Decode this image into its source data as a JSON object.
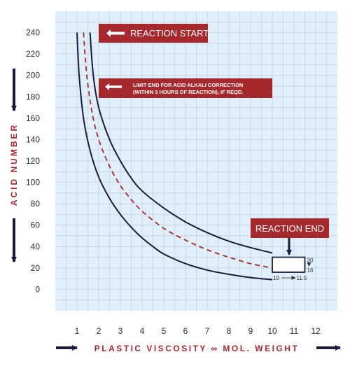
{
  "chart_data": {
    "type": "line",
    "title": "",
    "xlabel": "PLASTIC VISCOSITY ∞ MOL. WEIGHT",
    "ylabel": "ACID NUMBER",
    "xlim": [
      0,
      13
    ],
    "ylim": [
      -20,
      260
    ],
    "x_ticks": [
      1,
      2,
      3,
      4,
      5,
      6,
      7,
      8,
      9,
      10,
      11,
      12
    ],
    "y_ticks": [
      0,
      20,
      40,
      60,
      80,
      100,
      120,
      140,
      160,
      180,
      200,
      220,
      240
    ],
    "grid": true,
    "series": [
      {
        "style": "solid",
        "color": "#1c1a3c",
        "points": [
          [
            1.0,
            240
          ],
          [
            1.1,
            200
          ],
          [
            1.3,
            160
          ],
          [
            1.6,
            130
          ],
          [
            2.0,
            105
          ],
          [
            2.5,
            85
          ],
          [
            3.0,
            70
          ],
          [
            3.5,
            58
          ],
          [
            4.0,
            48
          ],
          [
            4.5,
            40
          ],
          [
            5.0,
            33
          ],
          [
            6.0,
            24
          ],
          [
            7.0,
            18
          ],
          [
            8.0,
            14
          ],
          [
            9.0,
            11
          ],
          [
            10.0,
            9
          ]
        ]
      },
      {
        "style": "dashed",
        "color": "#a5282c",
        "points": [
          [
            1.3,
            240
          ],
          [
            1.45,
            200
          ],
          [
            1.7,
            165
          ],
          [
            2.0,
            140
          ],
          [
            2.5,
            115
          ],
          [
            3.0,
            97
          ],
          [
            3.5,
            84
          ],
          [
            4.0,
            73
          ],
          [
            5.0,
            57
          ],
          [
            6.0,
            46
          ],
          [
            7.0,
            37
          ],
          [
            8.0,
            30
          ],
          [
            9.0,
            24
          ],
          [
            10.0,
            20
          ]
        ]
      },
      {
        "style": "solid",
        "color": "#1c1a3c",
        "points": [
          [
            1.6,
            240
          ],
          [
            1.75,
            200
          ],
          [
            2.0,
            170
          ],
          [
            2.5,
            140
          ],
          [
            3.0,
            120
          ],
          [
            3.5,
            104
          ],
          [
            4.0,
            92
          ],
          [
            5.0,
            76
          ],
          [
            6.0,
            63
          ],
          [
            7.0,
            53
          ],
          [
            8.0,
            45
          ],
          [
            9.0,
            39
          ],
          [
            10.0,
            34
          ]
        ]
      }
    ],
    "annotations": {
      "reaction_start": "REACTION START",
      "limit_end_line1": "LIMIT END FOR ACID ALKALI CORRECTION",
      "limit_end_line2": "(WITHIN 3 HOURS OF REACTION), IF REQD.",
      "reaction_end": "REACTION END",
      "end_box": {
        "x": [
          10,
          11.5
        ],
        "y": [
          16,
          30
        ],
        "x_label": "10",
        "x_label2": "11.5",
        "y_label_top": "30",
        "y_label_bottom": "16"
      }
    },
    "colors": {
      "background": "#dff0fb",
      "grid": "#c8c8d6",
      "accent": "#a5282c",
      "navy": "#1c1a3c"
    }
  }
}
